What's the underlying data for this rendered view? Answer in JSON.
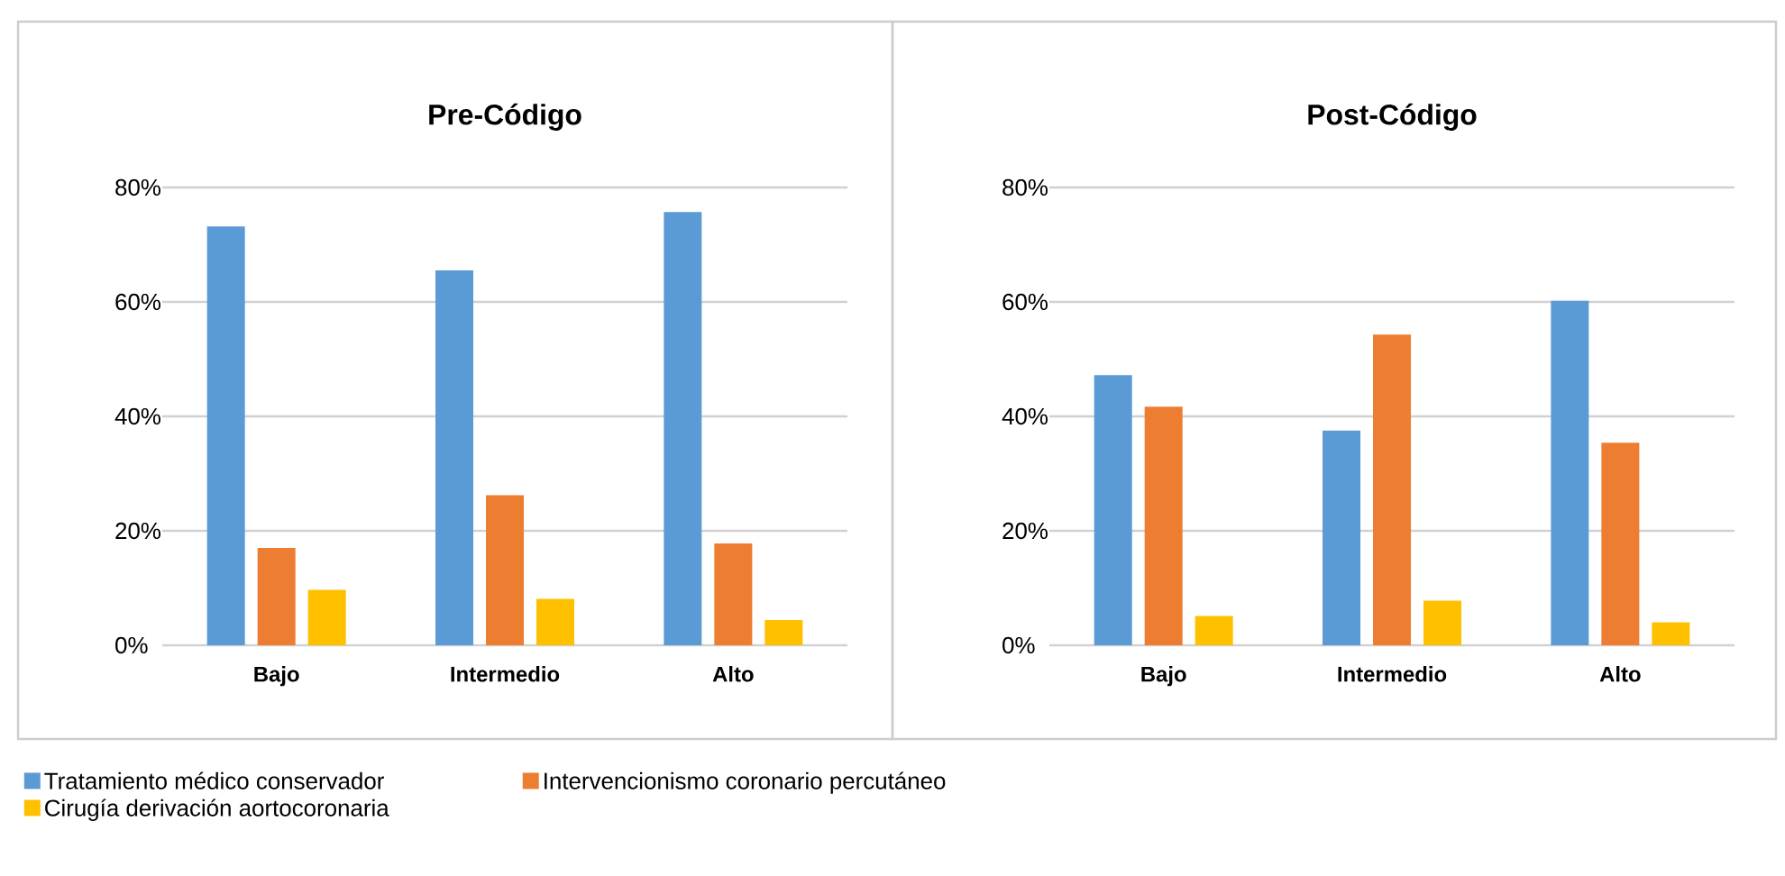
{
  "chart_data": [
    {
      "type": "bar",
      "title": "Pre-Código",
      "categories": [
        "Bajo",
        "Intermedio",
        "Alto"
      ],
      "ylim": [
        0,
        80
      ],
      "yticks": [
        {
          "value": 0,
          "label": "0%"
        },
        {
          "value": 20,
          "label": "20%"
        },
        {
          "value": 40,
          "label": "40%"
        },
        {
          "value": 60,
          "label": "60%"
        },
        {
          "value": 80,
          "label": "80%"
        }
      ],
      "grid": "y",
      "legend": "bottom",
      "series": [
        {
          "name": "Tratamiento médico conservador",
          "color": "#5b9bd5",
          "values": [
            73.2,
            65.5,
            75.7
          ]
        },
        {
          "name": "Intervencionismo coronario percutáneo",
          "color": "#ed7d31",
          "values": [
            17.0,
            26.2,
            17.8
          ]
        },
        {
          "name": "Cirugía derivación aortocoronaria",
          "color": "#ffc000",
          "values": [
            9.7,
            8.1,
            4.4
          ]
        }
      ]
    },
    {
      "type": "bar",
      "title": "Post-Código",
      "categories": [
        "Bajo",
        "Intermedio",
        "Alto"
      ],
      "ylim": [
        0,
        80
      ],
      "yticks": [
        {
          "value": 0,
          "label": "0%"
        },
        {
          "value": 20,
          "label": "20%"
        },
        {
          "value": 40,
          "label": "40%"
        },
        {
          "value": 60,
          "label": "60%"
        },
        {
          "value": 80,
          "label": "80%"
        }
      ],
      "grid": "y",
      "series": [
        {
          "color": "#5b9bd5",
          "values": [
            47.2,
            37.5,
            60.2
          ]
        },
        {
          "color": "#ed7d31",
          "values": [
            41.7,
            54.3,
            35.4
          ]
        },
        {
          "color": "#ffc000",
          "values": [
            5.1,
            7.8,
            4.0
          ]
        }
      ]
    }
  ]
}
